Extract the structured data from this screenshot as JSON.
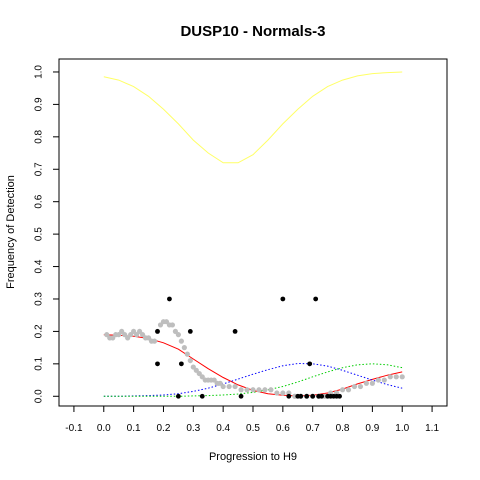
{
  "chart_data": {
    "type": "scatter",
    "title": "DUSP10 - Normals-3",
    "xlabel": "Progression to H9",
    "ylabel": "Frequency of Detection",
    "xlim": [
      -0.15,
      1.15
    ],
    "ylim": [
      -0.03,
      1.04
    ],
    "xticks": [
      "-0.1",
      "0.0",
      "0.1",
      "0.2",
      "0.3",
      "0.4",
      "0.5",
      "0.6",
      "0.7",
      "0.8",
      "0.9",
      "1.0",
      "1.1"
    ],
    "yticks": [
      "0.0",
      "0.1",
      "0.2",
      "0.3",
      "0.4",
      "0.5",
      "0.6",
      "0.7",
      "0.8",
      "0.9",
      "1.0"
    ],
    "grid": false,
    "colors": {
      "observed": "#000000",
      "smoothed": "#bebebe",
      "red": "#ff0000",
      "blue": "#0000ff",
      "green": "#00cc00",
      "yellow": "#ffff66"
    },
    "observed_points": [
      [
        0.18,
        0.2
      ],
      [
        0.18,
        0.1
      ],
      [
        0.22,
        0.3
      ],
      [
        0.25,
        0.0
      ],
      [
        0.26,
        0.1
      ],
      [
        0.29,
        0.2
      ],
      [
        0.33,
        0.0
      ],
      [
        0.44,
        0.2
      ],
      [
        0.46,
        0.0
      ],
      [
        0.6,
        0.3
      ],
      [
        0.62,
        0.0
      ],
      [
        0.65,
        0.0
      ],
      [
        0.66,
        0.0
      ],
      [
        0.68,
        0.0
      ],
      [
        0.69,
        0.1
      ],
      [
        0.7,
        0.0
      ],
      [
        0.71,
        0.3
      ],
      [
        0.72,
        0.0
      ],
      [
        0.73,
        0.0
      ],
      [
        0.75,
        0.0
      ],
      [
        0.76,
        0.0
      ],
      [
        0.77,
        0.0
      ],
      [
        0.78,
        0.0
      ],
      [
        0.79,
        0.0
      ]
    ],
    "smoothed_points": [
      [
        0.01,
        0.19
      ],
      [
        0.02,
        0.18
      ],
      [
        0.03,
        0.18
      ],
      [
        0.04,
        0.19
      ],
      [
        0.05,
        0.19
      ],
      [
        0.06,
        0.2
      ],
      [
        0.07,
        0.19
      ],
      [
        0.08,
        0.18
      ],
      [
        0.09,
        0.19
      ],
      [
        0.1,
        0.2
      ],
      [
        0.11,
        0.19
      ],
      [
        0.12,
        0.2
      ],
      [
        0.13,
        0.19
      ],
      [
        0.14,
        0.18
      ],
      [
        0.15,
        0.18
      ],
      [
        0.16,
        0.17
      ],
      [
        0.17,
        0.17
      ],
      [
        0.18,
        0.2
      ],
      [
        0.19,
        0.22
      ],
      [
        0.2,
        0.23
      ],
      [
        0.21,
        0.23
      ],
      [
        0.22,
        0.22
      ],
      [
        0.23,
        0.22
      ],
      [
        0.24,
        0.2
      ],
      [
        0.25,
        0.19
      ],
      [
        0.26,
        0.17
      ],
      [
        0.27,
        0.15
      ],
      [
        0.28,
        0.13
      ],
      [
        0.29,
        0.11
      ],
      [
        0.3,
        0.09
      ],
      [
        0.31,
        0.08
      ],
      [
        0.32,
        0.07
      ],
      [
        0.33,
        0.06
      ],
      [
        0.34,
        0.05
      ],
      [
        0.35,
        0.05
      ],
      [
        0.36,
        0.05
      ],
      [
        0.37,
        0.05
      ],
      [
        0.38,
        0.04
      ],
      [
        0.39,
        0.04
      ],
      [
        0.4,
        0.03
      ],
      [
        0.42,
        0.03
      ],
      [
        0.44,
        0.03
      ],
      [
        0.46,
        0.02
      ],
      [
        0.48,
        0.02
      ],
      [
        0.5,
        0.02
      ],
      [
        0.52,
        0.02
      ],
      [
        0.54,
        0.02
      ],
      [
        0.56,
        0.02
      ],
      [
        0.58,
        0.01
      ],
      [
        0.6,
        0.01
      ],
      [
        0.62,
        0.01
      ],
      [
        0.64,
        0.0
      ],
      [
        0.66,
        0.0
      ],
      [
        0.68,
        0.0
      ],
      [
        0.7,
        0.0
      ],
      [
        0.72,
        0.0
      ],
      [
        0.74,
        0.0
      ],
      [
        0.76,
        0.01
      ],
      [
        0.78,
        0.01
      ],
      [
        0.8,
        0.02
      ],
      [
        0.82,
        0.02
      ],
      [
        0.84,
        0.03
      ],
      [
        0.86,
        0.03
      ],
      [
        0.88,
        0.04
      ],
      [
        0.9,
        0.04
      ],
      [
        0.92,
        0.05
      ],
      [
        0.94,
        0.05
      ],
      [
        0.96,
        0.06
      ],
      [
        0.98,
        0.06
      ],
      [
        1.0,
        0.06
      ]
    ],
    "series": [
      {
        "color": "red",
        "style": "solid",
        "x": [
          0.0,
          0.05,
          0.1,
          0.15,
          0.2,
          0.25,
          0.3,
          0.35,
          0.4,
          0.45,
          0.5,
          0.55,
          0.6,
          0.65,
          0.7,
          0.75,
          0.8,
          0.85,
          0.9,
          0.95,
          1.0
        ],
        "y": [
          0.19,
          0.188,
          0.185,
          0.178,
          0.165,
          0.145,
          0.115,
          0.085,
          0.058,
          0.035,
          0.018,
          0.008,
          0.003,
          0.001,
          0.003,
          0.01,
          0.022,
          0.038,
          0.052,
          0.065,
          0.075
        ]
      },
      {
        "color": "blue",
        "style": "dotted",
        "x": [
          0.0,
          0.05,
          0.1,
          0.15,
          0.2,
          0.25,
          0.3,
          0.35,
          0.4,
          0.45,
          0.5,
          0.55,
          0.6,
          0.65,
          0.7,
          0.75,
          0.8,
          0.85,
          0.9,
          0.95,
          1.0
        ],
        "y": [
          0.0,
          0.0,
          0.001,
          0.002,
          0.004,
          0.008,
          0.015,
          0.025,
          0.038,
          0.053,
          0.068,
          0.082,
          0.094,
          0.101,
          0.1,
          0.093,
          0.08,
          0.065,
          0.05,
          0.036,
          0.025
        ]
      },
      {
        "color": "green",
        "style": "dotted",
        "x": [
          0.0,
          0.05,
          0.1,
          0.15,
          0.2,
          0.25,
          0.3,
          0.35,
          0.4,
          0.45,
          0.5,
          0.55,
          0.6,
          0.65,
          0.7,
          0.75,
          0.8,
          0.85,
          0.9,
          0.95,
          1.0
        ],
        "y": [
          0.0,
          0.0,
          0.0,
          0.0,
          0.0,
          0.0,
          0.001,
          0.002,
          0.004,
          0.007,
          0.012,
          0.02,
          0.03,
          0.044,
          0.06,
          0.075,
          0.088,
          0.097,
          0.1,
          0.097,
          0.088
        ]
      },
      {
        "color": "yellow",
        "style": "solid",
        "x": [
          0.0,
          0.05,
          0.1,
          0.15,
          0.2,
          0.25,
          0.3,
          0.35,
          0.4,
          0.45,
          0.5,
          0.55,
          0.6,
          0.65,
          0.7,
          0.75,
          0.8,
          0.85,
          0.9,
          0.95,
          1.0
        ],
        "y": [
          0.985,
          0.975,
          0.955,
          0.925,
          0.885,
          0.84,
          0.79,
          0.75,
          0.72,
          0.72,
          0.745,
          0.79,
          0.84,
          0.885,
          0.925,
          0.955,
          0.975,
          0.988,
          0.995,
          0.998,
          1.0
        ]
      }
    ]
  }
}
